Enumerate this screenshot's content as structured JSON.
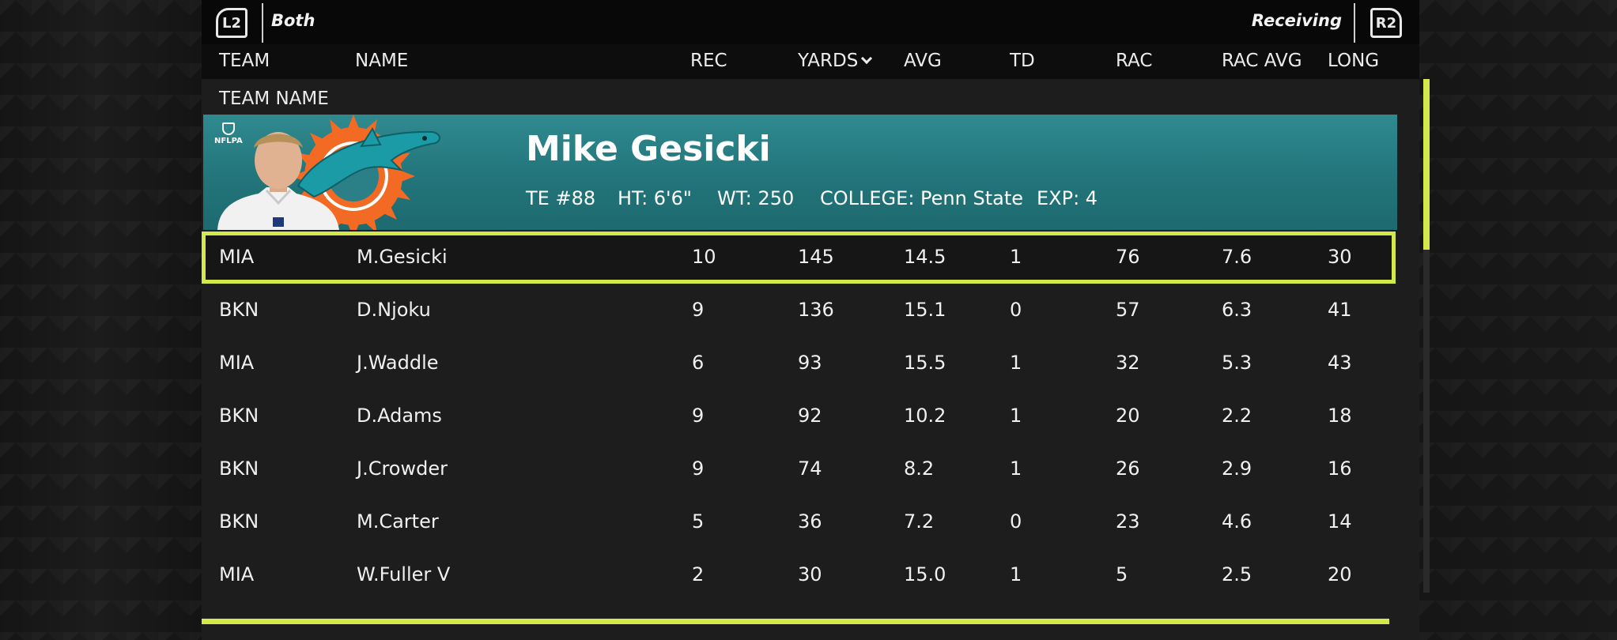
{
  "topbar": {
    "left_button": "L2",
    "left_label": "Both",
    "right_label": "Receiving",
    "right_button": "R2"
  },
  "columns": {
    "team": "TEAM",
    "name": "NAME",
    "rec": "REC",
    "yards": "YARDS",
    "avg": "AVG",
    "td": "TD",
    "rac": "RAC",
    "rac_avg": "RAC AVG",
    "long": "LONG"
  },
  "group_label": "TEAM NAME",
  "player_card": {
    "badge": "NFLPA",
    "name": "Mike Gesicki",
    "position": "TE #88",
    "height": "HT: 6'6\"",
    "weight": "WT: 250",
    "college": "COLLEGE: Penn State",
    "experience": "EXP: 4",
    "team_colors": {
      "aqua": "#2f8a8f",
      "orange": "#f26a24",
      "dolphin": "#1a9ba5"
    }
  },
  "accent_color": "#d3e84a",
  "rows": [
    {
      "team": "MIA",
      "name": "M.Gesicki",
      "rec": "10",
      "yards": "145",
      "avg": "14.5",
      "td": "1",
      "rac": "76",
      "rac_avg": "7.6",
      "long": "30"
    },
    {
      "team": "BKN",
      "name": "D.Njoku",
      "rec": "9",
      "yards": "136",
      "avg": "15.1",
      "td": "0",
      "rac": "57",
      "rac_avg": "6.3",
      "long": "41"
    },
    {
      "team": "MIA",
      "name": "J.Waddle",
      "rec": "6",
      "yards": "93",
      "avg": "15.5",
      "td": "1",
      "rac": "32",
      "rac_avg": "5.3",
      "long": "43"
    },
    {
      "team": "BKN",
      "name": "D.Adams",
      "rec": "9",
      "yards": "92",
      "avg": "10.2",
      "td": "1",
      "rac": "20",
      "rac_avg": "2.2",
      "long": "18"
    },
    {
      "team": "BKN",
      "name": "J.Crowder",
      "rec": "9",
      "yards": "74",
      "avg": "8.2",
      "td": "1",
      "rac": "26",
      "rac_avg": "2.9",
      "long": "16"
    },
    {
      "team": "BKN",
      "name": "M.Carter",
      "rec": "5",
      "yards": "36",
      "avg": "7.2",
      "td": "0",
      "rac": "23",
      "rac_avg": "4.6",
      "long": "14"
    },
    {
      "team": "MIA",
      "name": "W.Fuller V",
      "rec": "2",
      "yards": "30",
      "avg": "15.0",
      "td": "1",
      "rac": "5",
      "rac_avg": "2.5",
      "long": "20"
    }
  ]
}
